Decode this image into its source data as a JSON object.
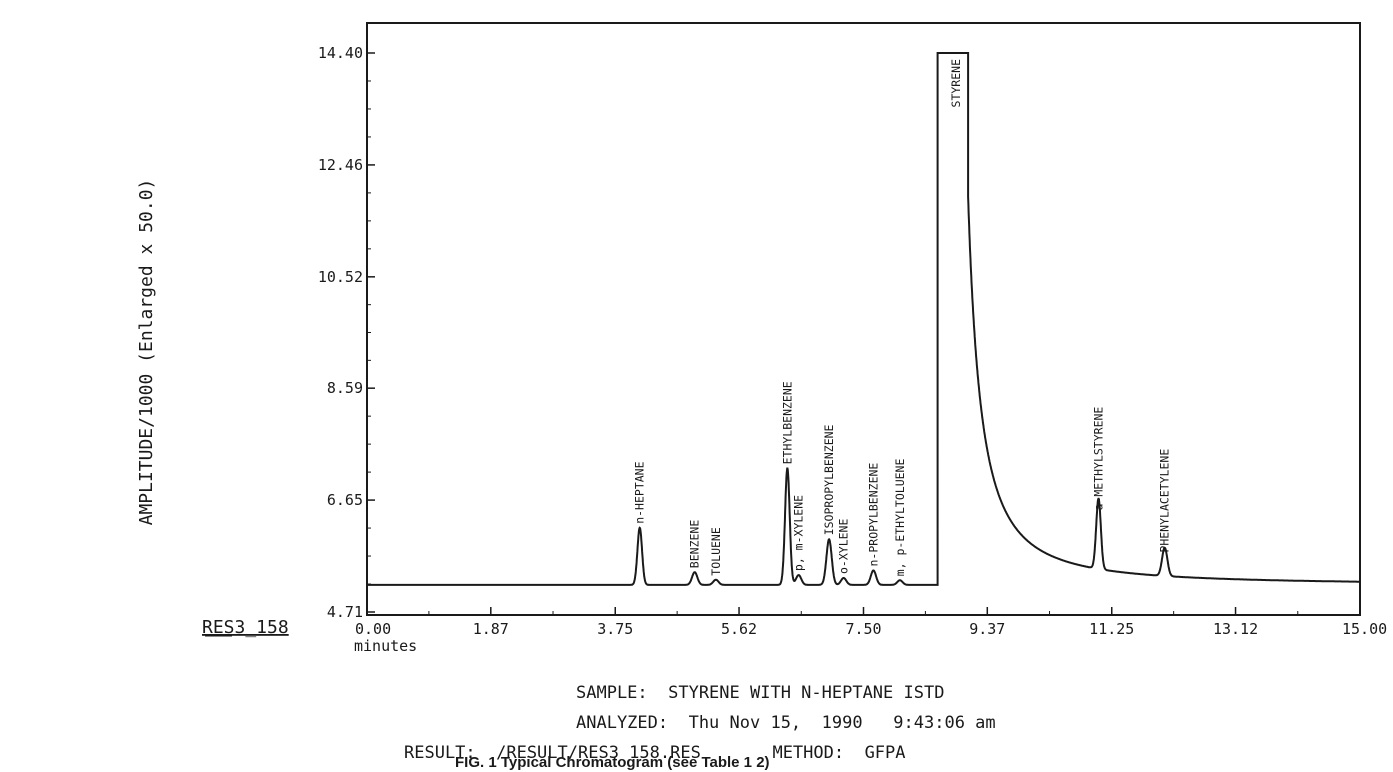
{
  "chart_data": {
    "type": "line",
    "ylabel": "AMPLITUDE/1000 (Enlarged x  50.0)",
    "xlabel": "minutes",
    "xlim": [
      0,
      15
    ],
    "ylim": [
      4.71,
      14.4
    ],
    "x_ticks": [
      "0.00",
      "1.87",
      "3.75",
      "5.62",
      "7.50",
      "9.37",
      "11.25",
      "13.12",
      "15.00"
    ],
    "x_tick_values": [
      0,
      1.87,
      3.75,
      5.62,
      7.5,
      9.37,
      11.25,
      13.12,
      15.0
    ],
    "y_ticks": [
      "14.40",
      "12.46",
      "10.52",
      "8.59",
      "6.65",
      "4.71"
    ],
    "y_tick_values": [
      14.4,
      12.46,
      10.52,
      8.59,
      6.65,
      4.71
    ],
    "baseline": 5.18,
    "peaks": [
      {
        "label": "n-HEPTANE",
        "rt": 4.12,
        "height": 6.17
      },
      {
        "label": "BENZENE",
        "rt": 4.95,
        "height": 5.4
      },
      {
        "label": "TOLUENE",
        "rt": 5.27,
        "height": 5.27
      },
      {
        "label": "ETHYLBENZENE",
        "rt": 6.35,
        "height": 7.2
      },
      {
        "label": "p, m-XYLENE",
        "rt": 6.52,
        "height": 5.35
      },
      {
        "label": "ISOPROPYLBENZENE",
        "rt": 6.98,
        "height": 5.97
      },
      {
        "label": "o-XYLENE",
        "rt": 7.2,
        "height": 5.3
      },
      {
        "label": "n-PROPYLBENZENE",
        "rt": 7.65,
        "height": 5.43
      },
      {
        "label": "m, p-ETHYLTOLUENE",
        "rt": 8.05,
        "height": 5.26
      },
      {
        "label": "STYRENE",
        "rt": 8.9,
        "height": 14.4
      },
      {
        "label": "a-METHYLSTYRENE",
        "rt": 11.05,
        "height": 6.4
      },
      {
        "label": "PHENYLACETYLENE",
        "rt": 12.05,
        "height": 5.67
      }
    ]
  },
  "side_label": "RES3_158",
  "info": {
    "sample": "SAMPLE:  STYRENE WITH N-HEPTANE ISTD",
    "analyzed": "ANALYZED:  Thu Nov 15,  1990   9:43:06 am",
    "result": "RESULT:  /RESULT/RES3 158.RES       METHOD:  GFPA"
  },
  "caption": "FIG. 1 Typical Chromatogram (see Table 1 2)"
}
